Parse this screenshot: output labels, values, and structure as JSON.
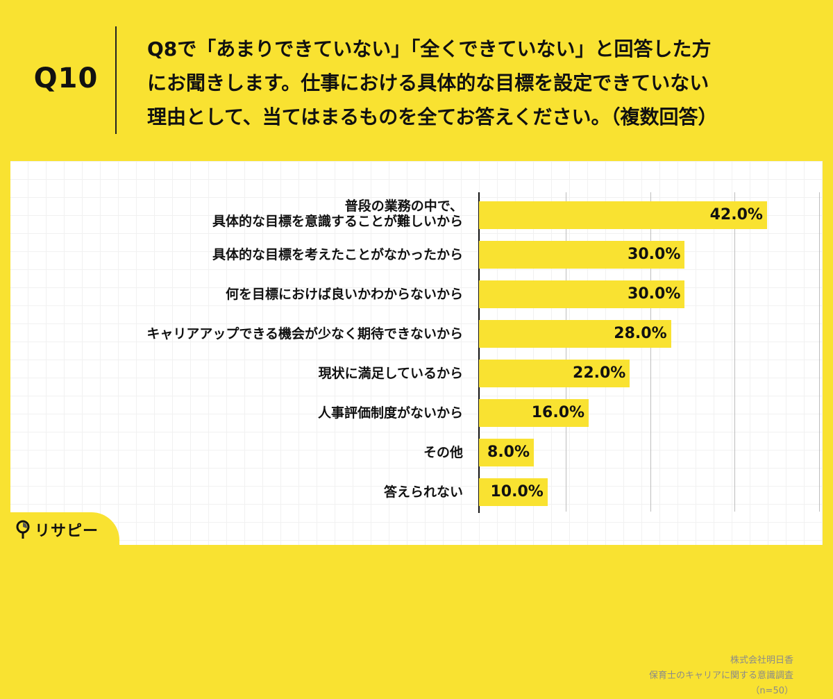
{
  "header": {
    "question_number": "Q10",
    "question_lines": [
      "Q8で「あまりできていない」「全くできていない」と回答した方",
      "にお聞きします。仕事における具体的な目標を設定できていない",
      "理由として、当てはまるものを全てお答えください。（複数回答）"
    ]
  },
  "chart_data": {
    "type": "bar",
    "orientation": "horizontal",
    "title": "Q8で「あまりできていない」「全くできていない」と回答した方にお聞きします。仕事における具体的な目標を設定できていない理由として、当てはまるものを全てお答えください。（複数回答）",
    "categories": [
      "普段の業務の中で、具体的な目標を意識することが難しいから",
      "具体的な目標を考えたことがなかったから",
      "何を目標におけば良いかわからないから",
      "キャリアアップできる機会が少なく期待できないから",
      "現状に満足しているから",
      "人事評価制度がないから",
      "その他",
      "答えられない"
    ],
    "values": [
      42.0,
      30.0,
      30.0,
      28.0,
      22.0,
      16.0,
      8.0,
      10.0
    ],
    "unit": "%",
    "xlabel": "",
    "ylabel": "",
    "grid": true,
    "legend": "none",
    "bar_color": "#f9e231"
  },
  "bars": [
    {
      "label_lines": [
        "普段の業務の中で、",
        "具体的な目標を意識することが難しいから"
      ],
      "value": 42.0,
      "display": "42.0%"
    },
    {
      "label_lines": [
        "具体的な目標を考えたことがなかったから"
      ],
      "value": 30.0,
      "display": "30.0%"
    },
    {
      "label_lines": [
        "何を目標におけば良いかわからないから"
      ],
      "value": 30.0,
      "display": "30.0%"
    },
    {
      "label_lines": [
        "キャリアアップできる機会が少なく期待できないから"
      ],
      "value": 28.0,
      "display": "28.0%"
    },
    {
      "label_lines": [
        "現状に満足しているから"
      ],
      "value": 22.0,
      "display": "22.0%"
    },
    {
      "label_lines": [
        "人事評価制度がないから"
      ],
      "value": 16.0,
      "display": "16.0%"
    },
    {
      "label_lines": [
        "その他"
      ],
      "value": 8.0,
      "display": "8.0%"
    },
    {
      "label_lines": [
        "答えられない"
      ],
      "value": 10.0,
      "display": "10.0%"
    }
  ],
  "source": {
    "company": "株式会社明日香",
    "survey": "保育士のキャリアに関する意識調査",
    "sample": "（n=50）"
  },
  "logo": {
    "text": "リサピー",
    "icon": "pin-icon"
  },
  "colors": {
    "brand_yellow": "#f9e231",
    "text": "#111111",
    "gridline": "#bdbdbd",
    "source_text": "#8a8a8a"
  }
}
